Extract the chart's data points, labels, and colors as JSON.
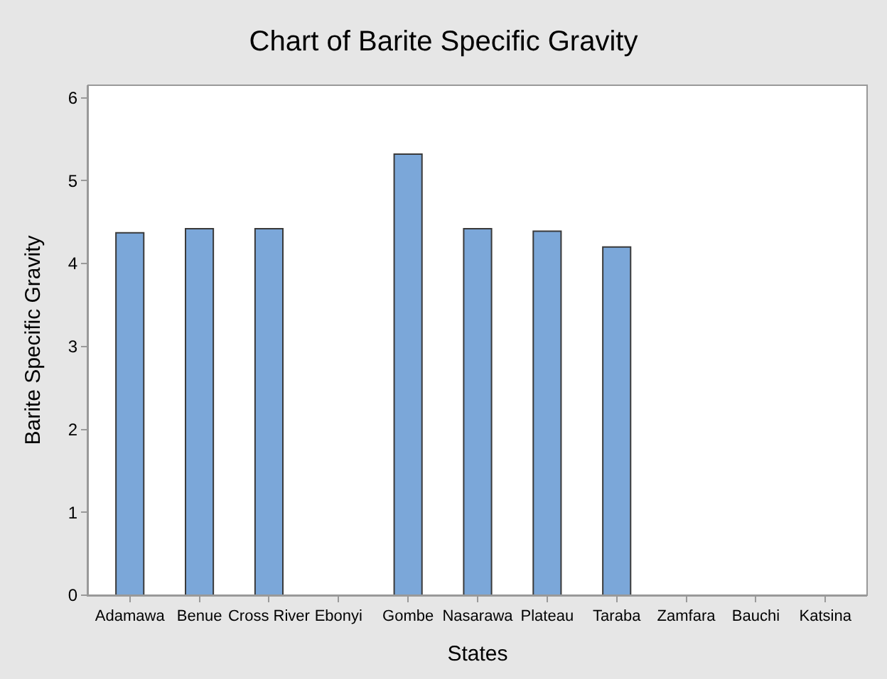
{
  "chart_data": {
    "type": "bar",
    "title": "Chart of Barite Specific Gravity",
    "xlabel": "States",
    "ylabel": "Barite Specific Gravity",
    "categories": [
      "Adamawa",
      "Benue",
      "Cross River",
      "Ebonyi",
      "Gombe",
      "Nasarawa",
      "Plateau",
      "Taraba",
      "Zamfara",
      "Bauchi",
      "Katsina"
    ],
    "values": [
      4.37,
      4.42,
      4.42,
      0,
      5.32,
      4.42,
      4.39,
      4.2,
      0,
      0,
      0
    ],
    "color": "#7ba7d9",
    "ylim": [
      0,
      6.15
    ],
    "yticks": [
      0,
      1,
      2,
      3,
      4,
      5,
      6
    ],
    "legend": false
  }
}
